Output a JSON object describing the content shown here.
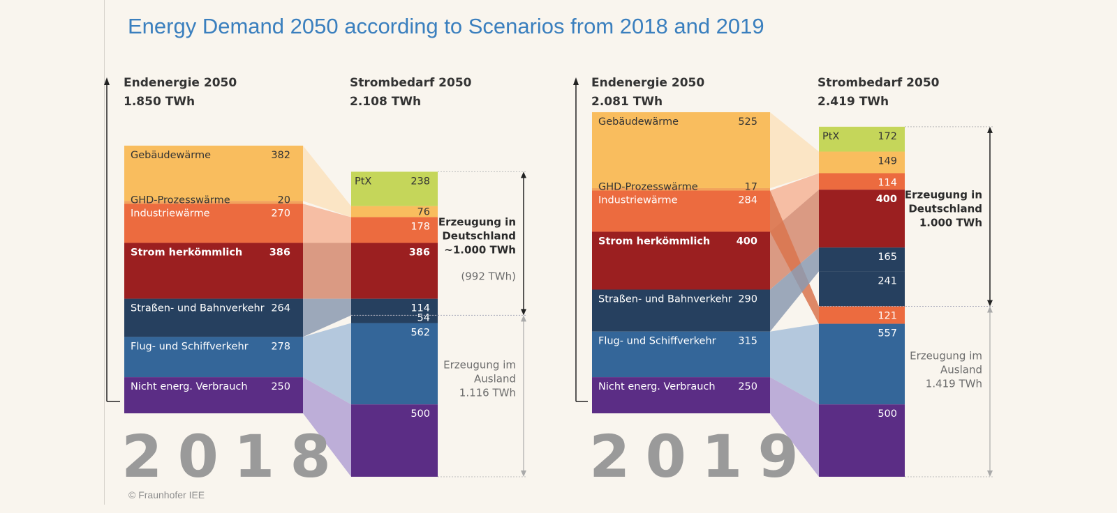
{
  "title": "Energy Demand 2050 according to Scenarios from 2018 and 2019",
  "credit": "© Fraunhofer IEE",
  "colors": {
    "gebaeude": "#f9bd5e",
    "ghd": "#f2a35c",
    "industrie": "#ec6b3f",
    "strom": "#9b1f20",
    "strasse": "#26405f",
    "flug": "#346699",
    "nicht": "#5b2d85",
    "ptx": "#c5d65a"
  },
  "chart_data": [
    {
      "type": "stacked-bar-flow",
      "year": "2018",
      "endenergie": {
        "title": "Endenergie 2050",
        "total": "1.850 TWh",
        "segments": [
          {
            "key": "gebaeude",
            "label": "Gebäudewärme",
            "value": 382,
            "text": "382"
          },
          {
            "key": "ghd",
            "label": "GHD-Prozesswärme",
            "value": 20,
            "text": "20"
          },
          {
            "key": "industrie",
            "label": "Industriewärme",
            "value": 270,
            "text": "270"
          },
          {
            "key": "strom",
            "label": "Strom herkömmlich",
            "value": 386,
            "text": "386"
          },
          {
            "key": "strasse",
            "label": "Straßen- und Bahnverkehr",
            "value": 264,
            "text": "264"
          },
          {
            "key": "flug",
            "label": "Flug- und Schiffverkehr",
            "value": 278,
            "text": "278"
          },
          {
            "key": "nicht",
            "label": "Nicht energ. Verbrauch",
            "value": 250,
            "text": "250"
          }
        ]
      },
      "strombedarf": {
        "title": "Strombedarf 2050",
        "total": "2.108 TWh",
        "segments": [
          {
            "key": "ptx",
            "label": "PtX",
            "value": 238,
            "text": "238"
          },
          {
            "key": "gebaeude",
            "label": "",
            "value": 76,
            "text": "76"
          },
          {
            "key": "industrie",
            "label": "",
            "value": 178,
            "text": "178"
          },
          {
            "key": "strom",
            "label": "",
            "value": 386,
            "text": "386"
          },
          {
            "key": "strasse",
            "label": "",
            "value": 114,
            "text": "114"
          },
          {
            "key": "strasse",
            "label": "",
            "value": 54,
            "text": "54"
          },
          {
            "key": "flug",
            "label": "",
            "value": 562,
            "text": "562"
          },
          {
            "key": "nicht",
            "label": "",
            "value": 500,
            "text": "500"
          }
        ]
      },
      "flows": [
        {
          "from": "gebaeude",
          "to": 1,
          "color": "#fbe2bd"
        },
        {
          "from": "industrie",
          "to": 2,
          "color": "#f6b497"
        },
        {
          "from": "strom",
          "to": 3,
          "color": "#d58a70"
        },
        {
          "from": "strasse",
          "to": 4,
          "color": "#8c9ab0"
        },
        {
          "from": "flug",
          "to": 6,
          "color": "#a8bfd9"
        },
        {
          "from": "nicht",
          "to": 7,
          "color": "#b3a1d3"
        }
      ],
      "domestic": {
        "split_after": 4,
        "line1": "Erzeugung in",
        "line2": "Deutschland",
        "line3": "~1.000 TWh",
        "line4": "(992 TWh)"
      },
      "abroad": {
        "line1": "Erzeugung im",
        "line2": "Ausland",
        "line3": "1.116 TWh"
      }
    },
    {
      "type": "stacked-bar-flow",
      "year": "2019",
      "endenergie": {
        "title": "Endenergie 2050",
        "total": "2.081 TWh",
        "segments": [
          {
            "key": "gebaeude",
            "label": "Gebäudewärme",
            "value": 525,
            "text": "525"
          },
          {
            "key": "ghd",
            "label": "GHD-Prozesswärme",
            "value": 17,
            "text": "17"
          },
          {
            "key": "industrie",
            "label": "Industriewärme",
            "value": 284,
            "text": "284"
          },
          {
            "key": "strom",
            "label": "Strom herkömmlich",
            "value": 400,
            "text": "400"
          },
          {
            "key": "strasse",
            "label": "Straßen- und Bahnverkehr",
            "value": 290,
            "text": "290"
          },
          {
            "key": "flug",
            "label": "Flug- und Schiffverkehr",
            "value": 315,
            "text": "315"
          },
          {
            "key": "nicht",
            "label": "Nicht energ. Verbrauch",
            "value": 250,
            "text": "250"
          }
        ]
      },
      "strombedarf": {
        "title": "Strombedarf 2050",
        "total": "2.419 TWh",
        "segments": [
          {
            "key": "ptx",
            "label": "PtX",
            "value": 172,
            "text": "172"
          },
          {
            "key": "gebaeude",
            "label": "",
            "value": 149,
            "text": "149"
          },
          {
            "key": "industrie",
            "label": "",
            "value": 114,
            "text": "114"
          },
          {
            "key": "strom",
            "label": "",
            "value": 400,
            "text": "400"
          },
          {
            "key": "strasse",
            "label": "",
            "value": 165,
            "text": "165"
          },
          {
            "key": "strasse",
            "label": "",
            "value": 241,
            "text": "241"
          },
          {
            "key": "industrie",
            "label": "",
            "value": 121,
            "text": "121"
          },
          {
            "key": "flug",
            "label": "",
            "value": 557,
            "text": "557"
          },
          {
            "key": "nicht",
            "label": "",
            "value": 500,
            "text": "500"
          }
        ]
      },
      "flows": [
        {
          "from": "gebaeude",
          "to": 1,
          "color": "#fbe2bd"
        },
        {
          "from": "industrie",
          "to": 2,
          "color": "#f6b497"
        },
        {
          "from": "strom",
          "to": 3,
          "color": "#d58a70"
        },
        {
          "from": "industrie",
          "to": 6,
          "color": "#d9744e"
        },
        {
          "from": "strasse",
          "to": 4,
          "color": "#8c9ab0"
        },
        {
          "from": "flug",
          "to": 7,
          "color": "#a8bfd9"
        },
        {
          "from": "nicht",
          "to": 8,
          "color": "#b3a1d3"
        }
      ],
      "domestic": {
        "split_after": 5,
        "line1": "Erzeugung in",
        "line2": "Deutschland",
        "line3": "1.000 TWh",
        "line4": ""
      },
      "abroad": {
        "line1": "Erzeugung im",
        "line2": "Ausland",
        "line3": "1.419 TWh"
      }
    }
  ]
}
